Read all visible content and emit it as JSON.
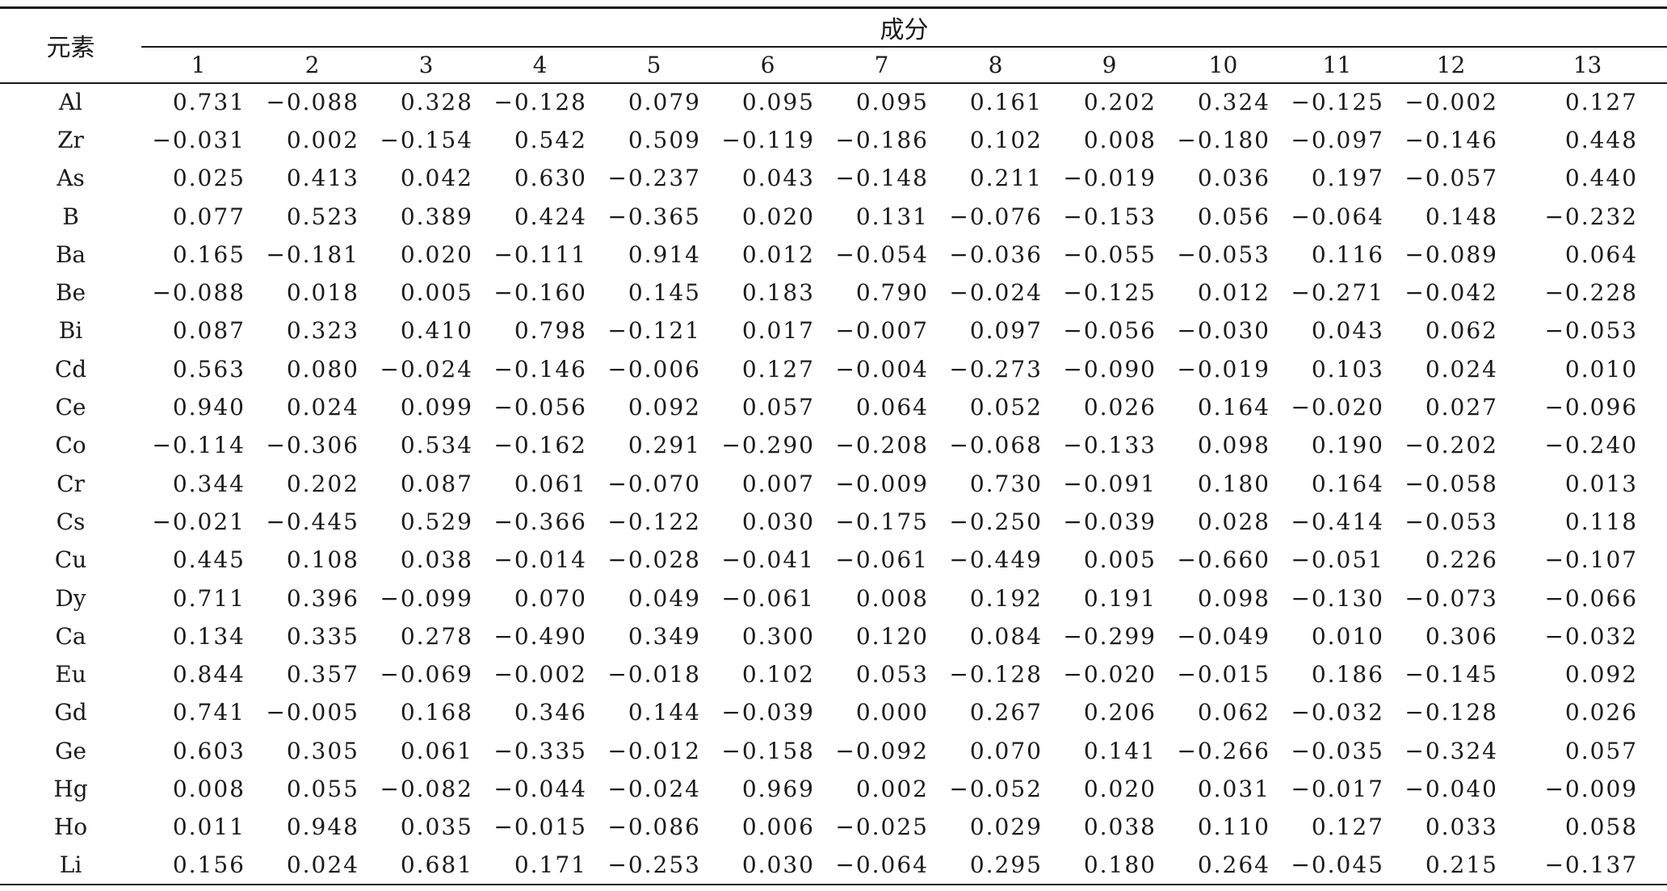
{
  "table": {
    "element_header": "元素",
    "group_header": "成分",
    "components": [
      "1",
      "2",
      "3",
      "4",
      "5",
      "6",
      "7",
      "8",
      "9",
      "10",
      "11",
      "12",
      "13"
    ],
    "rows": [
      {
        "element": "Al",
        "values": [
          "0.731",
          "−0.088",
          "0.328",
          "−0.128",
          "0.079",
          "0.095",
          "0.095",
          "0.161",
          "0.202",
          "0.324",
          "−0.125",
          "−0.002",
          "0.127"
        ]
      },
      {
        "element": "Zr",
        "values": [
          "−0.031",
          "0.002",
          "−0.154",
          "0.542",
          "0.509",
          "−0.119",
          "−0.186",
          "0.102",
          "0.008",
          "−0.180",
          "−0.097",
          "−0.146",
          "0.448"
        ]
      },
      {
        "element": "As",
        "values": [
          "0.025",
          "0.413",
          "0.042",
          "0.630",
          "−0.237",
          "0.043",
          "−0.148",
          "0.211",
          "−0.019",
          "0.036",
          "0.197",
          "−0.057",
          "0.440"
        ]
      },
      {
        "element": "B",
        "values": [
          "0.077",
          "0.523",
          "0.389",
          "0.424",
          "−0.365",
          "0.020",
          "0.131",
          "−0.076",
          "−0.153",
          "0.056",
          "−0.064",
          "0.148",
          "−0.232"
        ]
      },
      {
        "element": "Ba",
        "values": [
          "0.165",
          "−0.181",
          "0.020",
          "−0.111",
          "0.914",
          "0.012",
          "−0.054",
          "−0.036",
          "−0.055",
          "−0.053",
          "0.116",
          "−0.089",
          "0.064"
        ]
      },
      {
        "element": "Be",
        "values": [
          "−0.088",
          "0.018",
          "0.005",
          "−0.160",
          "0.145",
          "0.183",
          "0.790",
          "−0.024",
          "−0.125",
          "0.012",
          "−0.271",
          "−0.042",
          "−0.228"
        ]
      },
      {
        "element": "Bi",
        "values": [
          "0.087",
          "0.323",
          "0.410",
          "0.798",
          "−0.121",
          "0.017",
          "−0.007",
          "0.097",
          "−0.056",
          "−0.030",
          "0.043",
          "0.062",
          "−0.053"
        ]
      },
      {
        "element": "Cd",
        "values": [
          "0.563",
          "0.080",
          "−0.024",
          "−0.146",
          "−0.006",
          "0.127",
          "−0.004",
          "−0.273",
          "−0.090",
          "−0.019",
          "0.103",
          "0.024",
          "0.010"
        ]
      },
      {
        "element": "Ce",
        "values": [
          "0.940",
          "0.024",
          "0.099",
          "−0.056",
          "0.092",
          "0.057",
          "0.064",
          "0.052",
          "0.026",
          "0.164",
          "−0.020",
          "0.027",
          "−0.096"
        ]
      },
      {
        "element": "Co",
        "values": [
          "−0.114",
          "−0.306",
          "0.534",
          "−0.162",
          "0.291",
          "−0.290",
          "−0.208",
          "−0.068",
          "−0.133",
          "0.098",
          "0.190",
          "−0.202",
          "−0.240"
        ]
      },
      {
        "element": "Cr",
        "values": [
          "0.344",
          "0.202",
          "0.087",
          "0.061",
          "−0.070",
          "0.007",
          "−0.009",
          "0.730",
          "−0.091",
          "0.180",
          "0.164",
          "−0.058",
          "0.013"
        ]
      },
      {
        "element": "Cs",
        "values": [
          "−0.021",
          "−0.445",
          "0.529",
          "−0.366",
          "−0.122",
          "0.030",
          "−0.175",
          "−0.250",
          "−0.039",
          "0.028",
          "−0.414",
          "−0.053",
          "0.118"
        ]
      },
      {
        "element": "Cu",
        "values": [
          "0.445",
          "0.108",
          "0.038",
          "−0.014",
          "−0.028",
          "−0.041",
          "−0.061",
          "−0.449",
          "0.005",
          "−0.660",
          "−0.051",
          "0.226",
          "−0.107"
        ]
      },
      {
        "element": "Dy",
        "values": [
          "0.711",
          "0.396",
          "−0.099",
          "0.070",
          "0.049",
          "−0.061",
          "0.008",
          "0.192",
          "0.191",
          "0.098",
          "−0.130",
          "−0.073",
          "−0.066"
        ]
      },
      {
        "element": "Ca",
        "values": [
          "0.134",
          "0.335",
          "0.278",
          "−0.490",
          "0.349",
          "0.300",
          "0.120",
          "0.084",
          "−0.299",
          "−0.049",
          "0.010",
          "0.306",
          "−0.032"
        ]
      },
      {
        "element": "Eu",
        "values": [
          "0.844",
          "0.357",
          "−0.069",
          "−0.002",
          "−0.018",
          "0.102",
          "0.053",
          "−0.128",
          "−0.020",
          "−0.015",
          "0.186",
          "−0.145",
          "0.092"
        ]
      },
      {
        "element": "Gd",
        "values": [
          "0.741",
          "−0.005",
          "0.168",
          "0.346",
          "0.144",
          "−0.039",
          "0.000",
          "0.267",
          "0.206",
          "0.062",
          "−0.032",
          "−0.128",
          "0.026"
        ]
      },
      {
        "element": "Ge",
        "values": [
          "0.603",
          "0.305",
          "0.061",
          "−0.335",
          "−0.012",
          "−0.158",
          "−0.092",
          "0.070",
          "0.141",
          "−0.266",
          "−0.035",
          "−0.324",
          "0.057"
        ]
      },
      {
        "element": "Hg",
        "values": [
          "0.008",
          "0.055",
          "−0.082",
          "−0.044",
          "−0.024",
          "0.969",
          "0.002",
          "−0.052",
          "0.020",
          "0.031",
          "−0.017",
          "−0.040",
          "−0.009"
        ]
      },
      {
        "element": "Ho",
        "values": [
          "0.011",
          "0.948",
          "0.035",
          "−0.015",
          "−0.086",
          "0.006",
          "−0.025",
          "0.029",
          "0.038",
          "0.110",
          "0.127",
          "0.033",
          "0.058"
        ]
      },
      {
        "element": "Li",
        "values": [
          "0.156",
          "0.024",
          "0.681",
          "0.171",
          "−0.253",
          "0.030",
          "−0.064",
          "0.295",
          "0.180",
          "0.264",
          "−0.045",
          "0.215",
          "−0.137"
        ]
      }
    ]
  }
}
